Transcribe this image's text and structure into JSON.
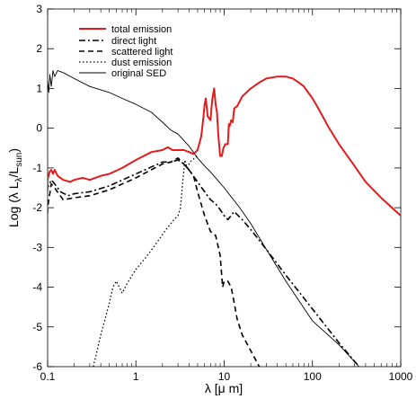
{
  "chart_data": {
    "type": "line",
    "title": "",
    "xlabel": "λ [μ m]",
    "ylabel": "Log (λ L",
    "ylabel_sub1": "λ",
    "ylabel_mid": "/L",
    "ylabel_sub2": "sun",
    "ylabel_end": ")",
    "xscale": "log",
    "xlim": [
      0.1,
      1000
    ],
    "ylim": [
      -6,
      3
    ],
    "grid": false,
    "legend_position": "top-left",
    "xticks": [
      {
        "v": 0.1,
        "label": "0.1"
      },
      {
        "v": 1,
        "label": "1"
      },
      {
        "v": 10,
        "label": "10"
      },
      {
        "v": 100,
        "label": "100"
      },
      {
        "v": 1000,
        "label": "1000"
      }
    ],
    "yticks": [
      {
        "v": -6,
        "label": "-6"
      },
      {
        "v": -5,
        "label": "-5"
      },
      {
        "v": -4,
        "label": "-4"
      },
      {
        "v": -3,
        "label": "-3"
      },
      {
        "v": -2,
        "label": "-2"
      },
      {
        "v": -1,
        "label": "-1"
      },
      {
        "v": 0,
        "label": "0"
      },
      {
        "v": 1,
        "label": "1"
      },
      {
        "v": 2,
        "label": "2"
      },
      {
        "v": 3,
        "label": "3"
      }
    ],
    "series": [
      {
        "name": "total emission",
        "color": "#e41a1c",
        "dash": "",
        "width": 2,
        "x": [
          0.091,
          0.095,
          0.1,
          0.105,
          0.11,
          0.115,
          0.12,
          0.13,
          0.15,
          0.18,
          0.2,
          0.25,
          0.3,
          0.4,
          0.5,
          0.7,
          1,
          1.5,
          2,
          2.3,
          2.6,
          3,
          3.5,
          4,
          4.5,
          5,
          5.5,
          5.8,
          6.0,
          6.2,
          6.5,
          7.0,
          7.3,
          7.7,
          8.0,
          8.3,
          8.6,
          9.0,
          9.4,
          9.8,
          10.3,
          11.0,
          11.3,
          11.5,
          12.0,
          12.5,
          13.0,
          14.0,
          16.0,
          20,
          25,
          30,
          40,
          50,
          60,
          70,
          80,
          100,
          120,
          150,
          200,
          300,
          400,
          600,
          1000
        ],
        "y": [
          -6,
          -3,
          -1.3,
          -1.1,
          -1.05,
          -1.15,
          -1.05,
          -1.2,
          -1.3,
          -1.35,
          -1.3,
          -1.25,
          -1.3,
          -1.2,
          -1.15,
          -1.0,
          -0.8,
          -0.6,
          -0.55,
          -0.48,
          -0.55,
          -0.55,
          -0.55,
          -0.6,
          -0.65,
          -0.55,
          -0.2,
          0.25,
          0.6,
          0.75,
          0.3,
          0.2,
          0.7,
          1.0,
          0.6,
          0.4,
          -0.2,
          -0.7,
          -0.7,
          -0.5,
          -0.4,
          -0.4,
          0.1,
          0.05,
          0.2,
          0.15,
          0.5,
          0.55,
          0.8,
          1.0,
          1.15,
          1.25,
          1.3,
          1.3,
          1.25,
          1.15,
          1.05,
          0.75,
          0.45,
          0.05,
          -0.4,
          -0.95,
          -1.35,
          -1.75,
          -2.2
        ]
      },
      {
        "name": "direct light",
        "color": "#000000",
        "dash": "7 3 2 3",
        "width": 1.6,
        "x": [
          0.092,
          0.096,
          0.1,
          0.11,
          0.12,
          0.14,
          0.17,
          0.2,
          0.3,
          0.5,
          1,
          2,
          2.5,
          3,
          3.5,
          4,
          5,
          6,
          7,
          8,
          9,
          10,
          11,
          13,
          16,
          20,
          30,
          50,
          100,
          200,
          337
        ],
        "y": [
          -6,
          -3,
          -1.5,
          -1.3,
          -1.4,
          -1.6,
          -1.7,
          -1.65,
          -1.6,
          -1.45,
          -1.15,
          -0.85,
          -0.85,
          -0.8,
          -0.9,
          -1.05,
          -1.35,
          -1.6,
          -1.8,
          -1.9,
          -2.05,
          -2.2,
          -2.3,
          -2.1,
          -2.3,
          -2.55,
          -3.05,
          -3.7,
          -4.55,
          -5.4,
          -6
        ]
      },
      {
        "name": "scattered light",
        "color": "#000000",
        "dash": "6 4",
        "width": 1.6,
        "x": [
          0.092,
          0.097,
          0.1,
          0.11,
          0.12,
          0.15,
          0.2,
          0.3,
          0.5,
          1,
          2,
          2.5,
          3,
          3.5,
          4,
          4.5,
          5,
          6,
          7,
          8,
          9,
          9.6,
          10,
          11,
          12,
          13,
          14,
          16,
          20,
          25
        ],
        "y": [
          -6,
          -3,
          -2.0,
          -1.4,
          -1.5,
          -1.8,
          -1.75,
          -1.7,
          -1.55,
          -1.25,
          -0.9,
          -0.85,
          -0.75,
          -0.9,
          -1.05,
          -1.2,
          -1.6,
          -2.2,
          -2.6,
          -2.7,
          -3.2,
          -4.0,
          -3.85,
          -3.85,
          -4.0,
          -4.4,
          -4.8,
          -5.2,
          -5.6,
          -6
        ]
      },
      {
        "name": "dust emission",
        "color": "#000000",
        "dash": "1.5 2.5",
        "width": 1.3,
        "x": [
          0.33,
          0.4,
          0.5,
          0.55,
          0.6,
          0.65,
          0.7,
          0.8,
          1,
          1.3,
          1.7,
          2.2,
          2.7,
          3.0,
          3.2,
          3.4,
          3.6,
          3.8,
          4.0,
          4.3,
          4.7,
          5.0
        ],
        "y": [
          -6,
          -5.2,
          -4.4,
          -4.0,
          -3.85,
          -4.0,
          -4.15,
          -3.9,
          -3.55,
          -3.25,
          -2.9,
          -2.55,
          -2.3,
          -2.2,
          -2.0,
          -1.3,
          -0.8,
          -1.0,
          -0.9,
          -0.8,
          -0.75,
          -0.7
        ]
      },
      {
        "name": "original SED",
        "color": "#000000",
        "dash": "",
        "width": 0.9,
        "x": [
          0.091,
          0.095,
          0.1,
          0.103,
          0.106,
          0.11,
          0.115,
          0.12,
          0.13,
          0.15,
          0.2,
          0.3,
          0.5,
          0.7,
          1,
          1.5,
          2,
          2.5,
          3,
          4,
          5,
          6,
          7,
          8,
          10,
          15,
          20,
          30,
          50,
          100,
          200,
          337
        ],
        "y": [
          -6,
          1.0,
          1.2,
          0.9,
          1.35,
          1.05,
          1.45,
          1.3,
          1.45,
          1.4,
          1.25,
          1.05,
          0.9,
          0.75,
          0.6,
          0.4,
          0.15,
          -0.05,
          -0.15,
          -0.45,
          -0.75,
          -0.95,
          -1.1,
          -1.25,
          -1.5,
          -2.0,
          -2.4,
          -3.05,
          -3.85,
          -4.85,
          -5.45,
          -6
        ]
      }
    ]
  }
}
